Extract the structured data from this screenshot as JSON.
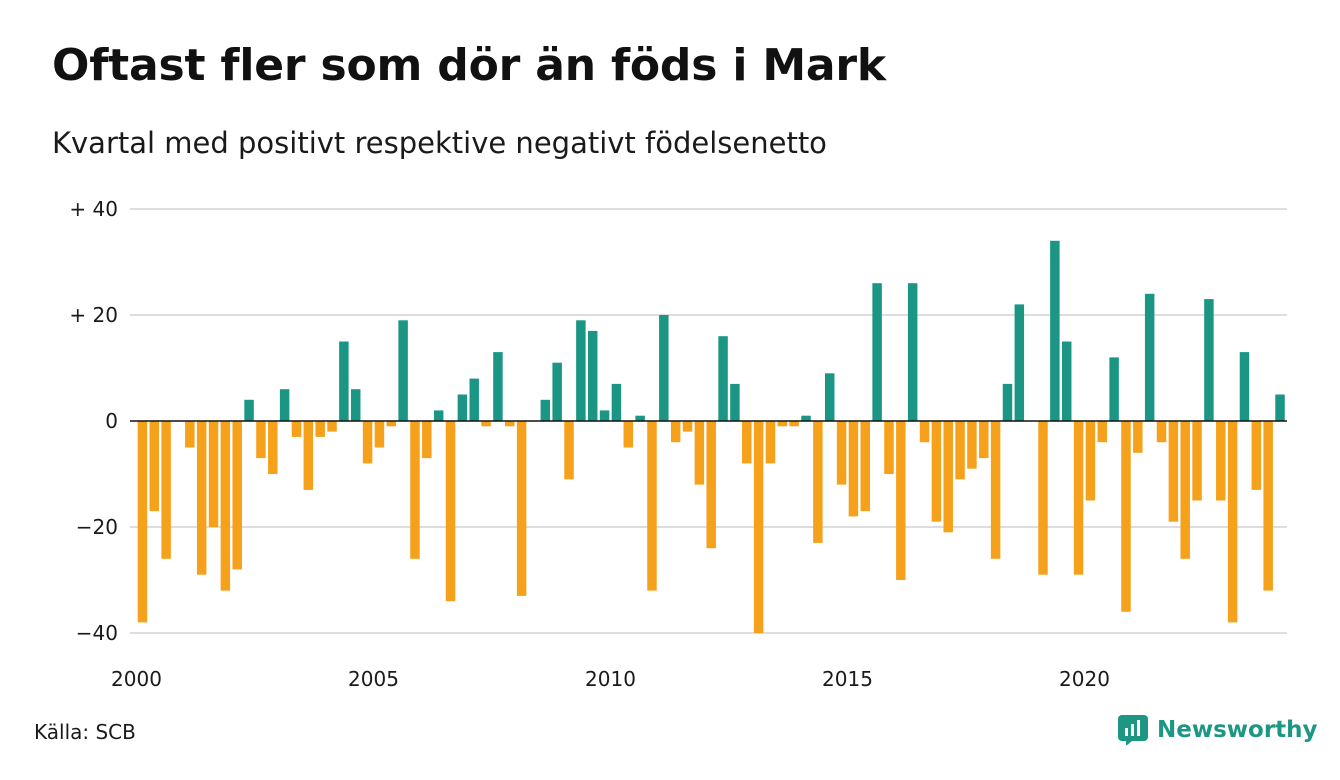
{
  "title": "Oftast fler som dör än föds i Mark",
  "subtitle": "Kvartal med positivt respektive negativt födelsenetto",
  "source": "Källa: SCB",
  "brand": {
    "name": "Newsworthy",
    "icon": "newsworthy-logo-icon",
    "color": "#1d9783"
  },
  "colors": {
    "positive": "#1b9685",
    "negative": "#f6a11c",
    "grid": "#dddddd",
    "zero": "#111111"
  },
  "chart_data": {
    "type": "bar",
    "x_start_year": 2000,
    "periods_per_year": 4,
    "ylim": [
      -40,
      40
    ],
    "grid": true,
    "yticks": [
      {
        "value": 40,
        "label": "+ 40"
      },
      {
        "value": 20,
        "label": "+ 20"
      },
      {
        "value": 0,
        "label": "0"
      },
      {
        "value": -20,
        "label": "−20"
      },
      {
        "value": -40,
        "label": "−40"
      }
    ],
    "xticks": [
      {
        "value": 2000,
        "label": "2000"
      },
      {
        "value": 2005,
        "label": "2005"
      },
      {
        "value": 2010,
        "label": "2010"
      },
      {
        "value": 2015,
        "label": "2015"
      },
      {
        "value": 2020,
        "label": "2020"
      }
    ],
    "values": [
      -38,
      -17,
      -26,
      0,
      -5,
      -29,
      -20,
      -32,
      -28,
      4,
      -7,
      -10,
      6,
      -3,
      -13,
      -3,
      -2,
      15,
      6,
      -8,
      -5,
      -1,
      19,
      -26,
      -7,
      2,
      -34,
      5,
      8,
      -1,
      13,
      -1,
      -33,
      0,
      4,
      11,
      -11,
      19,
      17,
      2,
      7,
      -5,
      1,
      -32,
      20,
      -4,
      -2,
      -12,
      -24,
      16,
      7,
      -8,
      -40,
      -8,
      -1,
      -1,
      1,
      -23,
      9,
      -12,
      -18,
      -17,
      26,
      -10,
      -30,
      26,
      -4,
      -19,
      -21,
      -11,
      -9,
      -7,
      -26,
      7,
      22,
      0,
      -29,
      34,
      15,
      -29,
      -15,
      -4,
      12,
      -36,
      -6,
      24,
      -4,
      -19,
      -26,
      -15,
      23,
      -15,
      -38,
      13,
      -13,
      -32,
      5
    ]
  }
}
